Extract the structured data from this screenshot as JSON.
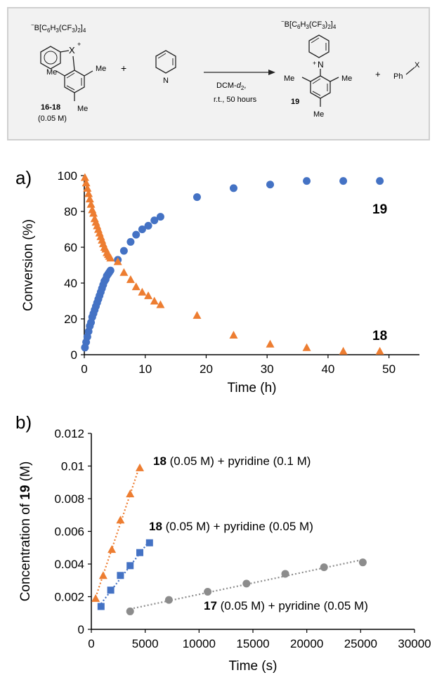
{
  "scheme": {
    "anion_left_minus": "−",
    "anion_left": "B[C6H3(CF3)2]4",
    "anion_right": "B[C6H3(CF3)2]4",
    "x_label": "X",
    "plus_charge": "+",
    "me": "Me",
    "compound_left": "16-18",
    "concentration_left": "(0.05 M)",
    "plus_sign": "+",
    "pyridine_n": "N",
    "conditions_solvent_prefix": "DCM-",
    "conditions_solvent_d": "d",
    "conditions_solvent_sub": "2",
    "conditions_solvent_suffix": ",",
    "conditions_time": "r.t., 50 hours",
    "compound_right": "19",
    "product_n": "N",
    "byproduct_ph": "Ph",
    "byproduct_x": "X"
  },
  "chart_data": [
    {
      "panel_label": "a)",
      "type": "scatter",
      "xlabel": "Time (h)",
      "ylabel": "Conversion (%)",
      "xlim": [
        0,
        55
      ],
      "ylim": [
        0,
        100
      ],
      "xticks": [
        "0",
        "10",
        "20",
        "30",
        "40",
        "50"
      ],
      "yticks": [
        "0",
        "20",
        "40",
        "60",
        "80",
        "100"
      ],
      "grid": false,
      "series": [
        {
          "name": "19",
          "marker": "circle",
          "color": "#4472c4",
          "x": [
            0.1,
            0.3,
            0.5,
            0.7,
            0.9,
            1.1,
            1.3,
            1.5,
            1.7,
            1.9,
            2.1,
            2.3,
            2.5,
            2.7,
            2.9,
            3.1,
            3.3,
            3.5,
            3.7,
            3.9,
            4.1,
            4.3,
            5.5,
            6.5,
            7.6,
            8.5,
            9.5,
            10.5,
            11.5,
            12.5,
            18.5,
            24.5,
            30.5,
            36.5,
            42.5,
            48.5
          ],
          "y": [
            4,
            7,
            10,
            13,
            16,
            18,
            21,
            23,
            25,
            27,
            29,
            31,
            33,
            35,
            37,
            39,
            41,
            42,
            44,
            45,
            46,
            47,
            53,
            58,
            63,
            67,
            70,
            72,
            75,
            77,
            88,
            93,
            95,
            97,
            97,
            97
          ]
        },
        {
          "name": "18",
          "marker": "triangle",
          "color": "#ed7d31",
          "x": [
            0.1,
            0.3,
            0.5,
            0.7,
            0.9,
            1.1,
            1.3,
            1.5,
            1.7,
            1.9,
            2.1,
            2.3,
            2.5,
            2.7,
            2.9,
            3.1,
            3.3,
            3.5,
            3.7,
            3.9,
            4.1,
            4.3,
            5.5,
            6.5,
            7.6,
            8.5,
            9.5,
            10.5,
            11.5,
            12.5,
            18.5,
            24.5,
            30.5,
            36.5,
            42.5,
            48.5
          ],
          "y": [
            99,
            96,
            93,
            90,
            87,
            84,
            81,
            79,
            76,
            74,
            72,
            70,
            68,
            66,
            64,
            62,
            60,
            59,
            57,
            56,
            55,
            54,
            52,
            46,
            42,
            38,
            35,
            33,
            30,
            28,
            22,
            11,
            6,
            4,
            2,
            2
          ]
        }
      ]
    },
    {
      "panel_label": "b)",
      "type": "scatter",
      "xlabel": "Time (s)",
      "ylabel_prefix": "Concentration of ",
      "ylabel_bold": "19",
      "ylabel_suffix": " (M)",
      "xlim": [
        0,
        30000
      ],
      "ylim": [
        0,
        0.012
      ],
      "xticks": [
        "0",
        "5000",
        "10000",
        "15000",
        "20000",
        "25000",
        "30000"
      ],
      "yticks": [
        "0",
        "0.002",
        "0.004",
        "0.006",
        "0.008",
        "0.01",
        "0.012"
      ],
      "grid": false,
      "series": [
        {
          "label_bold": "18",
          "label_rest": " (0.05 M) + pyridine (0.1 M)",
          "marker": "triangle",
          "color": "#ed7d31",
          "x": [
            400,
            1100,
            1900,
            2700,
            3600,
            4500
          ],
          "y": [
            0.0019,
            0.0033,
            0.0049,
            0.0067,
            0.0083,
            0.0099
          ]
        },
        {
          "label_bold": "18",
          "label_rest": " (0.05 M) + pyridine (0.05 M)",
          "marker": "square",
          "color": "#4472c4",
          "x": [
            900,
            1800,
            2700,
            3600,
            4500,
            5400
          ],
          "y": [
            0.0014,
            0.0024,
            0.0033,
            0.0039,
            0.0047,
            0.0053
          ]
        },
        {
          "label_bold": "17",
          "label_rest": " (0.05 M) + pyridine (0.05 M)",
          "marker": "circle",
          "color": "#8c8c8c",
          "x": [
            3600,
            7200,
            10800,
            14400,
            18000,
            21600,
            25200
          ],
          "y": [
            0.0011,
            0.0018,
            0.0023,
            0.0028,
            0.0034,
            0.0038,
            0.0041
          ]
        }
      ]
    }
  ]
}
